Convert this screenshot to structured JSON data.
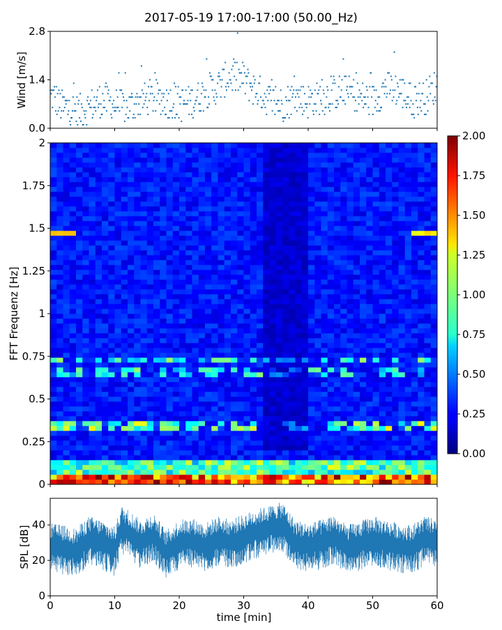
{
  "chart_data": [
    {
      "type": "scatter",
      "title": "2017-05-19 17:00-17:00 (50.00_Hz)",
      "ylabel": "Wind [m/s]",
      "xlim": [
        0,
        60
      ],
      "ylim": [
        0,
        2.8
      ],
      "yticks": [
        "0.0",
        "1.4",
        "2.8"
      ],
      "marker_color": "#1f77b4",
      "series": [
        {
          "x": [
            0.5,
            2,
            4,
            6,
            8,
            10,
            12,
            14,
            16,
            18,
            20,
            22,
            24,
            26,
            28,
            30,
            32,
            34,
            36,
            38,
            40,
            42,
            44,
            46,
            48,
            50,
            52,
            54,
            56,
            58,
            60
          ],
          "y": [
            0.9,
            0.6,
            0.5,
            0.6,
            0.8,
            0.7,
            0.6,
            0.8,
            0.9,
            0.8,
            0.7,
            0.8,
            1.0,
            1.2,
            1.5,
            1.4,
            1.1,
            0.8,
            0.7,
            0.9,
            0.8,
            0.9,
            1.0,
            1.1,
            0.9,
            0.8,
            1.2,
            1.1,
            0.8,
            0.9,
            1.2
          ]
        }
      ]
    },
    {
      "type": "heatmap",
      "ylabel": "FFT Frequenz [Hz]",
      "xlim": [
        0,
        60
      ],
      "ylim": [
        0,
        2
      ],
      "yticks": [
        "0",
        "0.25",
        "0.5",
        "0.75",
        "1",
        "1.25",
        "1.5",
        "1.75",
        "2"
      ],
      "colormap": "jet",
      "colorbar": {
        "range": [
          0,
          2
        ],
        "ticks": [
          "0.00",
          "0.25",
          "0.50",
          "0.75",
          "1.00",
          "1.25",
          "1.50",
          "1.75",
          "2.00"
        ]
      }
    },
    {
      "type": "area",
      "ylabel": "SPL [dB]",
      "xlabel": "time [min]",
      "xlim": [
        0,
        60
      ],
      "ylim": [
        0,
        55
      ],
      "xticks": [
        "0",
        "10",
        "20",
        "30",
        "40",
        "50",
        "60"
      ],
      "yticks": [
        "0",
        "20",
        "40"
      ],
      "color": "#1f77b4",
      "series": [
        {
          "x": [
            0,
            2,
            4,
            6,
            8,
            10,
            11,
            12,
            14,
            16,
            18,
            20,
            22,
            24,
            26,
            28,
            30,
            32,
            34,
            36,
            38,
            40,
            42,
            44,
            46,
            48,
            50,
            52,
            54,
            56,
            58,
            60
          ],
          "y": [
            28,
            27,
            25,
            32,
            30,
            26,
            38,
            36,
            30,
            34,
            24,
            30,
            31,
            28,
            32,
            30,
            33,
            36,
            38,
            40,
            30,
            28,
            30,
            33,
            27,
            29,
            32,
            30,
            28,
            27,
            32,
            30
          ]
        }
      ]
    }
  ]
}
